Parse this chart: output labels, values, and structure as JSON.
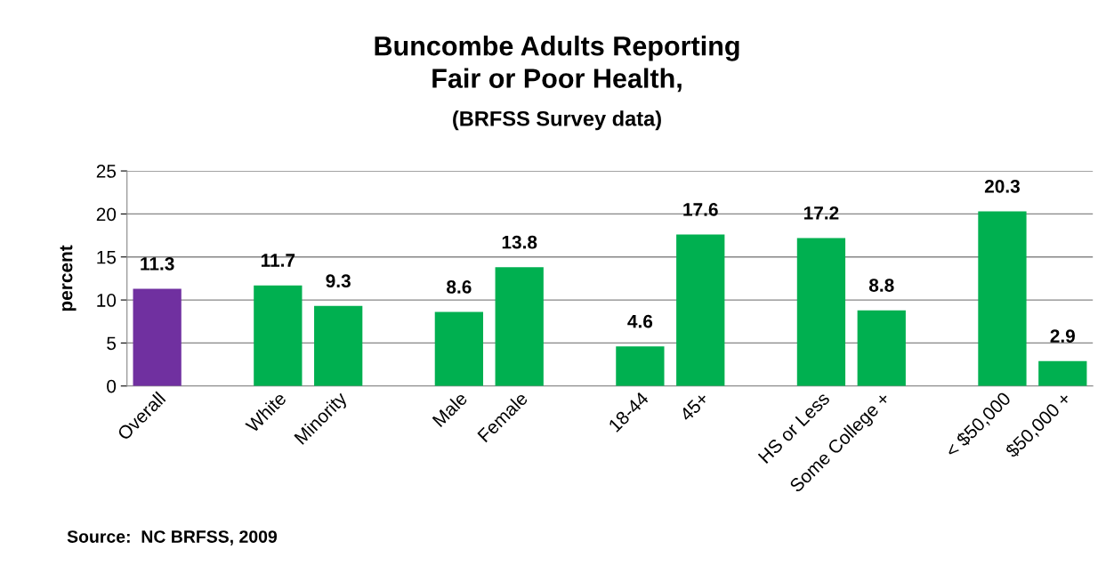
{
  "chart_data": {
    "type": "bar",
    "title": "Buncombe Adults Reporting\nFair or Poor Health,",
    "subtitle": "(BRFSS Survey data)",
    "ylabel": "percent",
    "categories": [
      "Overall",
      null,
      "White",
      "Minority",
      null,
      "Male",
      "Female",
      null,
      "18-44",
      "45+",
      null,
      "HS or Less",
      "Some College +",
      null,
      "< $50,000",
      "$50,000 +"
    ],
    "values": [
      11.3,
      null,
      11.7,
      9.3,
      null,
      8.6,
      13.8,
      null,
      4.6,
      17.6,
      null,
      17.2,
      8.8,
      null,
      20.3,
      2.9
    ],
    "colors": [
      "#7030a0",
      null,
      "#00b050",
      "#00b050",
      null,
      "#00b050",
      "#00b050",
      null,
      "#00b050",
      "#00b050",
      null,
      "#00b050",
      "#00b050",
      null,
      "#00b050",
      "#00b050"
    ],
    "ylim": [
      0,
      25
    ],
    "yticks": [
      0,
      5,
      10,
      15,
      20,
      25
    ],
    "grid": "y",
    "data_labels": true,
    "annotations": [
      "Source:  NC BRFSS, 2009"
    ]
  }
}
